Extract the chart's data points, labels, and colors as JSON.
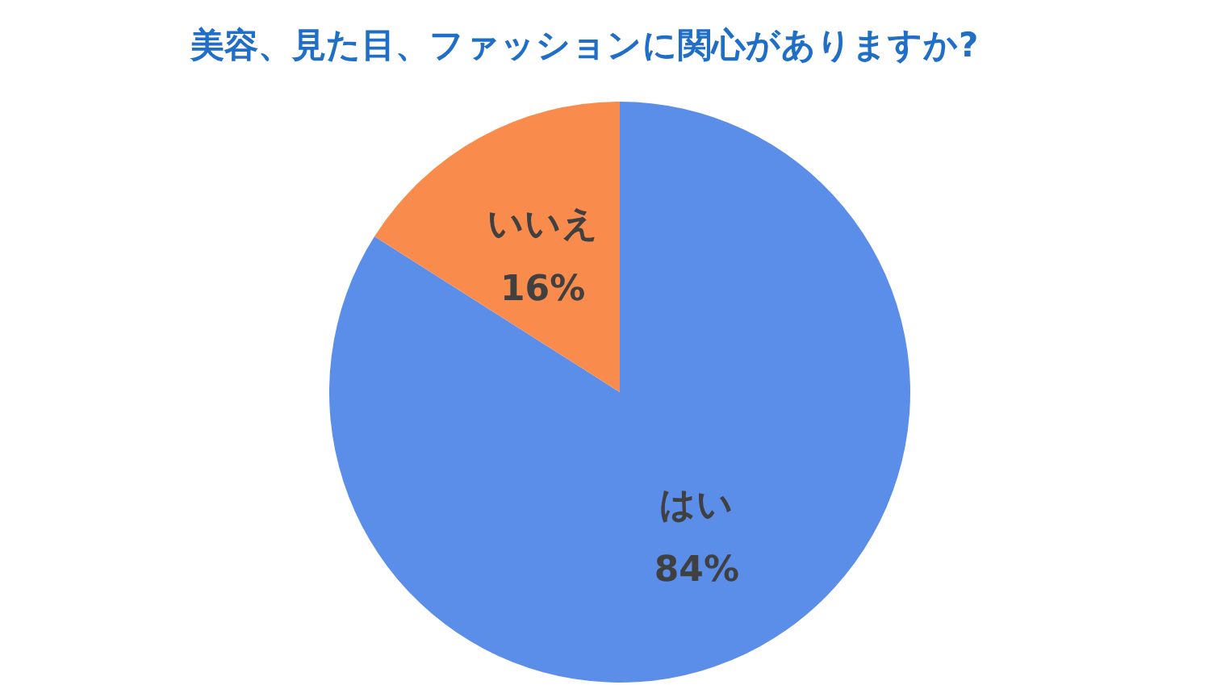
{
  "chart_data": {
    "type": "pie",
    "title": "美容、見た目、ファッションに関心がありますか?",
    "categories": [
      "はい",
      "いいえ"
    ],
    "values": [
      84,
      16
    ],
    "colors": [
      "#5b8ee8",
      "#f98c4c"
    ],
    "value_labels": [
      "84%",
      "16%"
    ],
    "legend": false
  }
}
